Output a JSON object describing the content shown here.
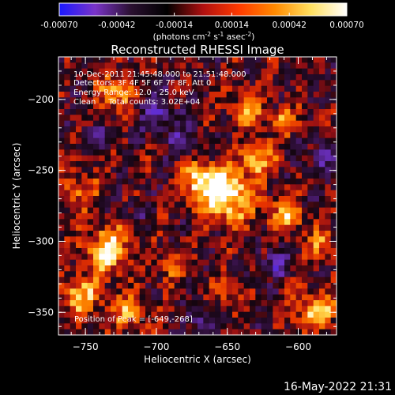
{
  "chart_data": {
    "type": "heatmap",
    "title": "Reconstructed RHESSI Image",
    "colorbar": {
      "ticks": [
        "-0.00070",
        "-0.00042",
        "-0.00014",
        "0.00014",
        "0.00042",
        "0.00070"
      ],
      "range": [
        -0.0007,
        0.0007
      ],
      "unit_prefix": "(photons cm",
      "unit_exp1": "-2",
      "unit_mid": " s",
      "unit_exp2": "-1",
      "unit_mid2": " asec",
      "unit_exp3": "-2",
      "unit_suffix": ")",
      "colors": [
        "#1a18ff",
        "#7a34c8",
        "#2a1030",
        "#000000",
        "#b01010",
        "#ff3a00",
        "#ff8a00",
        "#ffe060",
        "#ffffff"
      ]
    },
    "xlabel": "Heliocentric X (arcsec)",
    "ylabel": "Heliocentric Y (arcsec)",
    "xlim": [
      -769,
      -573
    ],
    "ylim": [
      -366,
      -170
    ],
    "xticks": [
      -750,
      -700,
      -650,
      -600
    ],
    "yticks": [
      -200,
      -250,
      -300,
      -350
    ],
    "xtick_labels": [
      "−750",
      "−700",
      "−650",
      "−600"
    ],
    "ytick_labels": [
      "−200",
      "−250",
      "−300",
      "−350"
    ],
    "annotations": {
      "time": "10-Dec-2011 21:45:48.000 to 21:51:48.000",
      "detectors": "Detectors: 3F 4F 5F 6F 7F 8F, Att 0",
      "energy": "Energy Range: 12.0 - 25.0 keV",
      "clean": "Clean     Total counts: 3.02E+04",
      "peak": "Position of Peak = [-649,-268]"
    },
    "peak_position": [
      -649,
      -268
    ],
    "grid": false
  },
  "footer": {
    "timestamp": "16-May-2022 21:31"
  }
}
